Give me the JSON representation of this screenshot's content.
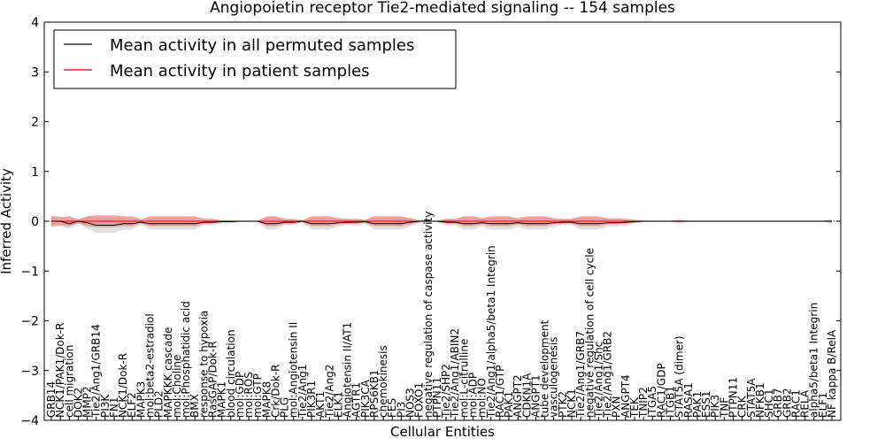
{
  "chart_data": {
    "type": "line",
    "title": "Angiopoietin receptor Tie2-mediated signaling -- 154 samples",
    "xlabel": "Cellular Entities",
    "ylabel": "Inferred Activity",
    "ylim": [
      -4,
      4
    ],
    "yticks": [
      "4",
      "3",
      "2",
      "1",
      "0",
      "−1",
      "−2",
      "−3",
      "−4"
    ],
    "legend_position": "top-left",
    "categories": [
      "GRB14",
      "NCK1/PAK1/Dok-R",
      "cell migration",
      "DOK2",
      "MMP2",
      "Tie2/Ang1/GRB14",
      "PI3K",
      "FN1",
      "NCK1/Dok-R",
      "ELF2",
      "MAPK3",
      "mol:beta2-estradiol",
      "PLD2",
      "MAPKKK cascade",
      "mol:Choline",
      "mol:Phosphatidic acid",
      "BMX",
      "response to hypoxia",
      "RasGAP/Dok-R",
      "MAPK1",
      "blood circulation",
      "mol:GDP",
      "mol:ROS",
      "mol:GTP",
      "MAPK8",
      "Crk/Dok-R",
      "PLG",
      "mol:Angiotensin II",
      "Tie2/Ang1",
      "PIK3R1",
      "AKT1",
      "Tie2/Ang2",
      "ELK1",
      "Angiotensin II/AT1",
      "AGTR1",
      "PIK3CA",
      "RPS6KB1",
      "chemokinesis",
      "FES",
      "PI3",
      "NOS3",
      "FOXO1",
      "negative regulation of caspase activity",
      "PTPN11",
      "Tie2/SHP2",
      "Tie2/Ang1/ABIN2",
      "mol:L-citrulline",
      "mol:ADP",
      "mol:NO",
      "Tie2/Ang1/alpha5/beta1 Integrin",
      "RAC1/GTP",
      "PAK1",
      "ANGPT2",
      "CDKN1A",
      "ANGPT1",
      "tube development",
      "vasculogenesis",
      "PTK2",
      "NCK1",
      "Tie2/Ang1/GRB7",
      "negative regulation of cell cycle",
      "Tie2/Ang1/Shc",
      "Tie2/Ang1/GRB2",
      "PXN",
      "ANGPT4",
      "TEK",
      "TNIP2",
      "ITGA5",
      "RAC1/GDP",
      "ITGB1",
      "STAT5A (dimer)",
      "RASA1",
      "PAK1",
      "ESS1",
      "PIK3",
      "TNF",
      "PTPN11",
      "CRK",
      "STAT5A",
      "NFKB1",
      "SHC1",
      "GRB7",
      "GRB2",
      "RAC1",
      "RELA",
      "alpha5/beta1 Integrin",
      "ELF1",
      "NF kappa B/RelA"
    ],
    "series": [
      {
        "name": "Mean activity in all permuted samples",
        "color": "#000000",
        "values": [
          0.0,
          0.0,
          -0.05,
          0.0,
          -0.03,
          -0.08,
          -0.08,
          -0.08,
          -0.05,
          -0.05,
          -0.02,
          -0.05,
          -0.05,
          -0.05,
          -0.05,
          -0.05,
          -0.05,
          -0.02,
          -0.02,
          -0.01,
          -0.01,
          0.0,
          0.0,
          0.0,
          -0.05,
          -0.05,
          -0.02,
          -0.02,
          0.0,
          -0.05,
          -0.05,
          -0.05,
          -0.03,
          -0.02,
          -0.02,
          -0.01,
          -0.05,
          -0.05,
          -0.05,
          -0.05,
          -0.02,
          0.0,
          0.0,
          0.0,
          -0.02,
          -0.02,
          -0.05,
          -0.05,
          -0.03,
          -0.05,
          -0.05,
          -0.05,
          -0.03,
          -0.05,
          -0.05,
          -0.05,
          -0.03,
          -0.02,
          -0.02,
          -0.05,
          -0.05,
          -0.05,
          -0.03,
          -0.03,
          -0.02,
          -0.01,
          0.0,
          0.0,
          0.0,
          0.0,
          0.0,
          0.0,
          0.0,
          0.0,
          0.0,
          0.0,
          0.0,
          0.0,
          0.0,
          0.0,
          0.0,
          0.0,
          0.0,
          0.0,
          0.0,
          0.0,
          0.0,
          0.0
        ],
        "band": [
          0.12,
          0.1,
          0.1,
          0.05,
          0.12,
          0.15,
          0.15,
          0.15,
          0.12,
          0.12,
          0.05,
          0.12,
          0.12,
          0.12,
          0.12,
          0.12,
          0.12,
          0.06,
          0.06,
          0.03,
          0.03,
          0.02,
          0.02,
          0.02,
          0.12,
          0.12,
          0.06,
          0.06,
          0.03,
          0.12,
          0.12,
          0.12,
          0.08,
          0.06,
          0.06,
          0.04,
          0.12,
          0.12,
          0.12,
          0.12,
          0.08,
          0.03,
          0.02,
          0.02,
          0.06,
          0.06,
          0.12,
          0.12,
          0.08,
          0.12,
          0.12,
          0.12,
          0.08,
          0.12,
          0.12,
          0.12,
          0.08,
          0.06,
          0.06,
          0.12,
          0.12,
          0.12,
          0.08,
          0.08,
          0.06,
          0.04,
          0.02,
          0.02,
          0.02,
          0.02,
          0.02,
          0.02,
          0.02,
          0.02,
          0.02,
          0.02,
          0.02,
          0.02,
          0.02,
          0.02,
          0.02,
          0.02,
          0.02,
          0.02,
          0.02,
          0.02,
          0.02,
          0.02
        ]
      },
      {
        "name": "Mean activity in patient samples",
        "color": "#ff0000",
        "band_color": "#f08080",
        "values": [
          0.0,
          0.0,
          0.0,
          0.0,
          0.0,
          0.0,
          0.0,
          0.0,
          0.0,
          0.0,
          0.0,
          0.0,
          0.0,
          0.0,
          0.0,
          0.0,
          0.0,
          0.0,
          0.0,
          0.0,
          0.0,
          0.0,
          0.0,
          0.0,
          0.0,
          0.0,
          0.0,
          0.0,
          0.0,
          0.0,
          0.0,
          0.0,
          0.0,
          0.0,
          0.0,
          0.0,
          0.0,
          0.0,
          0.0,
          0.0,
          0.0,
          0.0,
          0.0,
          0.0,
          0.0,
          0.0,
          0.0,
          0.0,
          0.0,
          0.0,
          0.0,
          0.0,
          0.0,
          0.0,
          0.0,
          0.0,
          0.0,
          0.0,
          0.0,
          0.0,
          0.0,
          0.0,
          0.0,
          0.0,
          0.0,
          0.0,
          0.0,
          0.0,
          0.0,
          0.0,
          0.0,
          0.0,
          0.0,
          0.0,
          0.0,
          0.0,
          0.0,
          0.0,
          0.0,
          0.0,
          0.0,
          0.0,
          0.0,
          0.0,
          0.0,
          0.0,
          0.0,
          0.0
        ],
        "band": [
          0.1,
          0.08,
          0.1,
          0.04,
          0.1,
          0.12,
          0.12,
          0.12,
          0.1,
          0.1,
          0.04,
          0.1,
          0.1,
          0.1,
          0.1,
          0.1,
          0.1,
          0.05,
          0.05,
          0.02,
          0.02,
          0.01,
          0.01,
          0.01,
          0.1,
          0.1,
          0.05,
          0.05,
          0.02,
          0.1,
          0.1,
          0.1,
          0.06,
          0.05,
          0.05,
          0.03,
          0.1,
          0.1,
          0.1,
          0.1,
          0.06,
          0.02,
          0.01,
          0.01,
          0.05,
          0.05,
          0.1,
          0.1,
          0.06,
          0.1,
          0.1,
          0.1,
          0.06,
          0.1,
          0.1,
          0.1,
          0.06,
          0.05,
          0.05,
          0.1,
          0.1,
          0.1,
          0.06,
          0.06,
          0.05,
          0.03,
          0.01,
          0.01,
          0.01,
          0.01,
          0.03,
          0.01,
          0.01,
          0.01,
          0.01,
          0.01,
          0.01,
          0.01,
          0.01,
          0.01,
          0.01,
          0.01,
          0.01,
          0.01,
          0.01,
          0.01,
          0.01,
          0.03
        ]
      }
    ]
  }
}
